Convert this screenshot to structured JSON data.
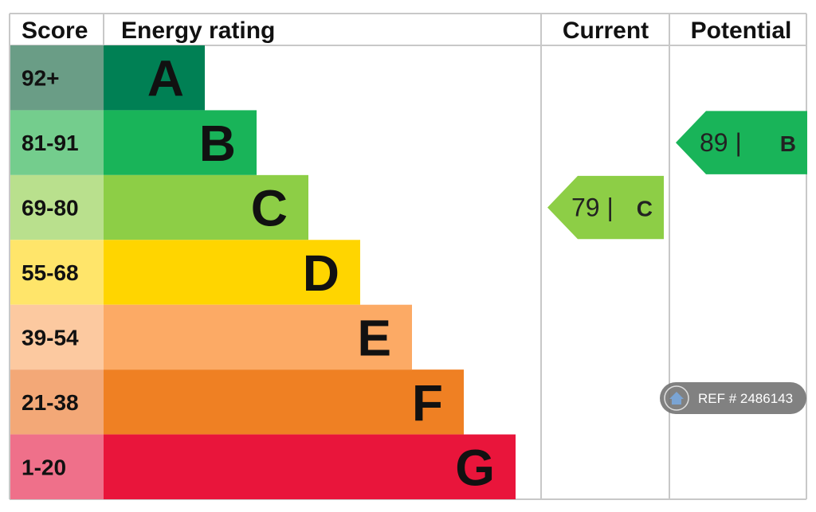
{
  "headers": {
    "score": "Score",
    "energy_rating": "Energy rating",
    "current": "Current",
    "potential": "Potential"
  },
  "chart_data": {
    "type": "bar",
    "categories": [
      "A",
      "B",
      "C",
      "D",
      "E",
      "F",
      "G"
    ],
    "bands": [
      {
        "letter": "A",
        "range": "92+",
        "color": "#008054",
        "score_color": "#6a9d86"
      },
      {
        "letter": "B",
        "range": "81-91",
        "color": "#19b459",
        "score_color": "#74cd8d"
      },
      {
        "letter": "C",
        "range": "69-80",
        "color": "#8dce46",
        "score_color": "#b9e08d"
      },
      {
        "letter": "D",
        "range": "55-68",
        "color": "#ffd500",
        "score_color": "#ffe56a"
      },
      {
        "letter": "E",
        "range": "39-54",
        "color": "#fcaa65",
        "score_color": "#fcc9a0"
      },
      {
        "letter": "F",
        "range": "21-38",
        "color": "#ef8023",
        "score_color": "#f3a877"
      },
      {
        "letter": "G",
        "range": "1-20",
        "color": "#e9153b",
        "score_color": "#ef708a"
      }
    ],
    "current": {
      "value": 79,
      "band": "C",
      "label": "79 |",
      "color": "#8dce46"
    },
    "potential": {
      "value": 89,
      "band": "B",
      "label": "89 |",
      "color": "#19b459"
    }
  },
  "watermark": {
    "text": "REF # 2486143",
    "icon": "home-icon"
  }
}
